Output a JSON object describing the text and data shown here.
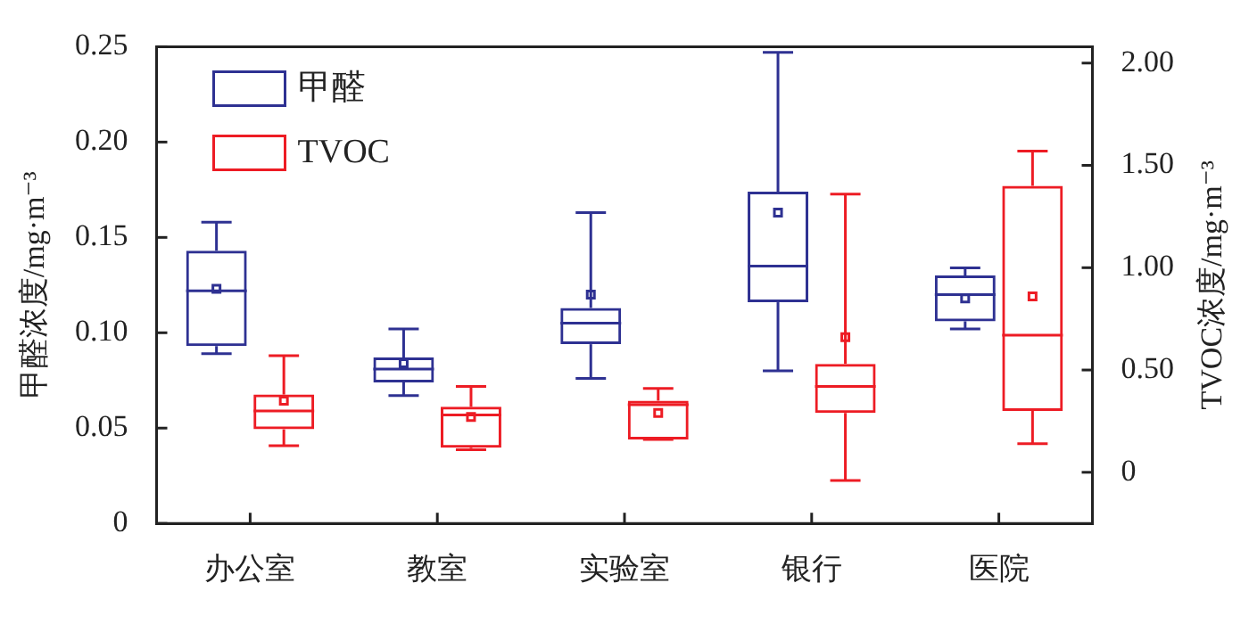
{
  "chart_data": {
    "type": "box",
    "categories": [
      "办公室",
      "教室",
      "实验室",
      "银行",
      "医院"
    ],
    "ylabel": "甲醛浓度/mg·m⁻³",
    "y2label": "TVOC浓度/mg·m⁻³",
    "legend": "top left",
    "ylim": [
      0,
      0.25
    ],
    "yticks": [
      0,
      {
        "value": 0.05,
        "label": "0.05"
      },
      {
        "value": 0.1,
        "label": "0.10"
      },
      {
        "value": 0.15,
        "label": "0.15"
      },
      {
        "value": 0.2,
        "label": "0.20"
      },
      {
        "value": 0.25,
        "label": "0.25"
      }
    ],
    "y2lim": [
      -0.25,
      2.08
    ],
    "y2ticks": [
      0,
      {
        "value": 0.5,
        "label": "0.50"
      },
      {
        "value": 1,
        "label": "1.00"
      },
      {
        "value": 1.5,
        "label": "1.50"
      },
      {
        "value": 2,
        "label": "2.00"
      }
    ],
    "series": [
      {
        "name": "甲醛",
        "color": "#2e3192",
        "boxes": [
          {
            "low": 0.089,
            "q1": 0.093,
            "median": 0.122,
            "q3": 0.143,
            "high": 0.158,
            "mean": 0.123
          },
          {
            "low": 0.067,
            "q1": 0.074,
            "median": 0.081,
            "q3": 0.087,
            "high": 0.102,
            "mean": 0.084
          },
          {
            "low": 0.076,
            "q1": 0.094,
            "median": 0.105,
            "q3": 0.113,
            "high": 0.163,
            "mean": 0.12
          },
          {
            "low": 0.08,
            "q1": 0.116,
            "median": 0.135,
            "q3": 0.174,
            "high": 0.247,
            "mean": 0.163
          },
          {
            "low": 0.102,
            "q1": 0.106,
            "median": 0.12,
            "q3": 0.13,
            "high": 0.134,
            "mean": 0.118
          }
        ]
      },
      {
        "name": "TVOC",
        "color": "#ed1c24",
        "axis": "y2",
        "boxes": [
          {
            "low": 0.13,
            "q1": 0.21,
            "median": 0.3,
            "q3": 0.38,
            "high": 0.57,
            "mean": 0.35
          },
          {
            "low": 0.11,
            "q1": 0.12,
            "median": 0.28,
            "q3": 0.32,
            "high": 0.42,
            "mean": 0.27
          },
          {
            "low": 0.16,
            "q1": 0.16,
            "median": 0.33,
            "q3": 0.35,
            "high": 0.41,
            "mean": 0.29
          },
          {
            "low": -0.04,
            "q1": 0.29,
            "median": 0.42,
            "q3": 0.53,
            "high": 1.36,
            "mean": 0.66
          },
          {
            "low": 0.14,
            "q1": 0.3,
            "median": 0.67,
            "q3": 1.4,
            "high": 1.57,
            "mean": 0.86
          }
        ]
      }
    ]
  }
}
